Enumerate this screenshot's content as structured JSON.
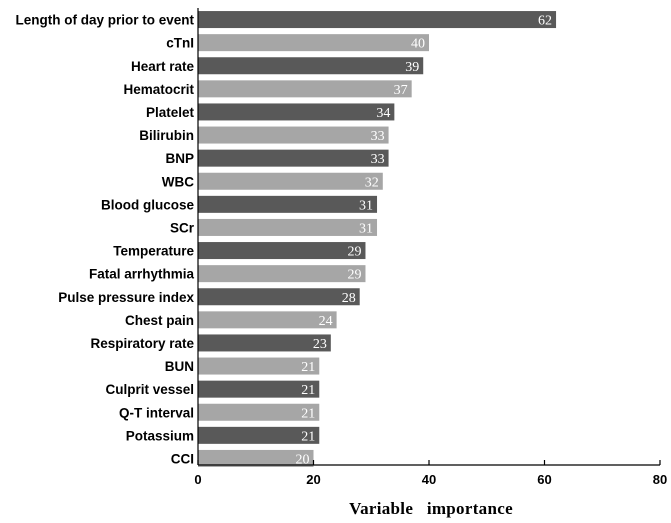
{
  "chart_data": {
    "type": "bar",
    "orientation": "horizontal",
    "title": "",
    "xlabel": "Variable   importance",
    "ylabel": "",
    "xlim": [
      0,
      80
    ],
    "xticks": [
      0,
      20,
      40,
      60,
      80
    ],
    "grid": false,
    "categories": [
      "Length of day prior to event",
      "cTnI",
      "Heart rate",
      "Hematocrit",
      "Platelet",
      "Bilirubin",
      "BNP",
      "WBC",
      "Blood glucose",
      "SCr",
      "Temperature",
      "Fatal arrhythmia",
      "Pulse pressure index",
      "Chest pain",
      "Respiratory rate",
      "BUN",
      "Culprit vessel",
      "Q-T interval",
      "Potassium",
      "CCI"
    ],
    "values": [
      62,
      40,
      39,
      37,
      34,
      33,
      33,
      32,
      31,
      31,
      29,
      29,
      28,
      24,
      23,
      21,
      21,
      21,
      21,
      20
    ],
    "bar_colors": [
      "#595959",
      "#a6a6a6"
    ],
    "value_label_color": "#ffffff"
  }
}
